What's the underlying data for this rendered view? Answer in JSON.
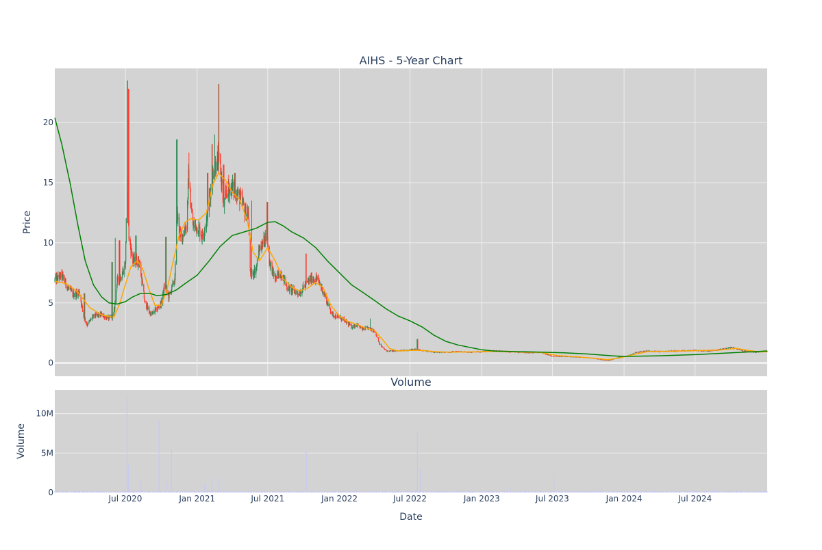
{
  "chart_data": [
    {
      "type": "candlestick",
      "title": "AIHS - 5-Year Chart",
      "xlabel": "",
      "ylabel": "Price",
      "ylim": [
        -1.1,
        24.5
      ],
      "y_ticks": [
        {
          "value": 0,
          "label": "0"
        },
        {
          "value": 5,
          "label": "5"
        },
        {
          "value": 10,
          "label": "10"
        },
        {
          "value": 15,
          "label": "15"
        },
        {
          "value": 20,
          "label": "20"
        }
      ],
      "xlim": [
        "2020-01-02",
        "2025-01-02"
      ],
      "grid": true,
      "colors": {
        "background": "#d3d3d3",
        "grid": "#eeeeee",
        "increasing": "#2e8b57",
        "decreasing": "#ff3c2e",
        "ma_short": "#ffa500",
        "ma_long": "#008000",
        "text": "#2a3f5f"
      },
      "price_path": [
        [
          "2020-01-02",
          6.9
        ],
        [
          "2020-01-20",
          7.3
        ],
        [
          "2020-02-05",
          6.2
        ],
        [
          "2020-02-20",
          5.7
        ],
        [
          "2020-03-05",
          5.9
        ],
        [
          "2020-03-16",
          3.9
        ],
        [
          "2020-03-25",
          3.2
        ],
        [
          "2020-04-10",
          3.9
        ],
        [
          "2020-05-01",
          4.0
        ],
        [
          "2020-05-20",
          3.7
        ],
        [
          "2020-06-01",
          4.0
        ],
        [
          "2020-06-10",
          6.8
        ],
        [
          "2020-06-20",
          7.2
        ],
        [
          "2020-07-01",
          8.2
        ],
        [
          "2020-07-05",
          16.0
        ],
        [
          "2020-07-10",
          10.5
        ],
        [
          "2020-07-20",
          8.5
        ],
        [
          "2020-08-05",
          8.5
        ],
        [
          "2020-08-20",
          5.0
        ],
        [
          "2020-09-05",
          4.0
        ],
        [
          "2020-09-20",
          4.5
        ],
        [
          "2020-10-01",
          5.0
        ],
        [
          "2020-10-10",
          6.5
        ],
        [
          "2020-10-20",
          5.5
        ],
        [
          "2020-11-05",
          7.0
        ],
        [
          "2020-11-10",
          12.5
        ],
        [
          "2020-11-20",
          10.3
        ],
        [
          "2020-12-05",
          11.5
        ],
        [
          "2020-12-10",
          15.5
        ],
        [
          "2020-12-20",
          11.5
        ],
        [
          "2021-01-05",
          11.2
        ],
        [
          "2021-01-15",
          10.5
        ],
        [
          "2021-01-25",
          12.0
        ],
        [
          "2021-02-05",
          14.5
        ],
        [
          "2021-02-12",
          16.0
        ],
        [
          "2021-02-22",
          17.0
        ],
        [
          "2021-03-01",
          16.5
        ],
        [
          "2021-03-10",
          13.0
        ],
        [
          "2021-03-20",
          14.5
        ],
        [
          "2021-04-05",
          14.5
        ],
        [
          "2021-04-15",
          14.0
        ],
        [
          "2021-04-25",
          13.5
        ],
        [
          "2021-05-05",
          12.5
        ],
        [
          "2021-05-12",
          12.5
        ],
        [
          "2021-05-18",
          7.2
        ],
        [
          "2021-06-01",
          7.8
        ],
        [
          "2021-06-10",
          9.5
        ],
        [
          "2021-06-20",
          10.0
        ],
        [
          "2021-06-28",
          11.0
        ],
        [
          "2021-07-05",
          8.5
        ],
        [
          "2021-07-20",
          7.0
        ],
        [
          "2021-08-05",
          7.5
        ],
        [
          "2021-08-20",
          6.3
        ],
        [
          "2021-09-05",
          6.0
        ],
        [
          "2021-09-20",
          5.8
        ],
        [
          "2021-10-05",
          6.5
        ],
        [
          "2021-10-20",
          7.0
        ],
        [
          "2021-11-05",
          7.0
        ],
        [
          "2021-11-20",
          6.0
        ],
        [
          "2021-12-01",
          5.0
        ],
        [
          "2021-12-15",
          4.0
        ],
        [
          "2022-01-01",
          3.8
        ],
        [
          "2022-01-15",
          3.5
        ],
        [
          "2022-02-01",
          3.0
        ],
        [
          "2022-02-15",
          3.2
        ],
        [
          "2022-03-01",
          2.8
        ],
        [
          "2022-03-15",
          2.9
        ],
        [
          "2022-04-01",
          2.7
        ],
        [
          "2022-04-15",
          1.5
        ],
        [
          "2022-05-01",
          1.0
        ],
        [
          "2022-06-01",
          1.0
        ],
        [
          "2022-07-01",
          1.1
        ],
        [
          "2022-07-20",
          1.15
        ],
        [
          "2022-08-01",
          1.05
        ],
        [
          "2022-09-01",
          0.9
        ],
        [
          "2022-10-01",
          0.9
        ],
        [
          "2022-11-01",
          0.95
        ],
        [
          "2022-12-01",
          0.9
        ],
        [
          "2023-01-01",
          0.95
        ],
        [
          "2023-02-01",
          1.0
        ],
        [
          "2023-03-01",
          0.95
        ],
        [
          "2023-04-01",
          0.9
        ],
        [
          "2023-05-01",
          0.85
        ],
        [
          "2023-06-01",
          0.9
        ],
        [
          "2023-07-01",
          0.55
        ],
        [
          "2023-08-01",
          0.55
        ],
        [
          "2023-09-01",
          0.5
        ],
        [
          "2023-10-01",
          0.45
        ],
        [
          "2023-11-01",
          0.3
        ],
        [
          "2023-11-20",
          0.2
        ],
        [
          "2023-12-01",
          0.3
        ],
        [
          "2023-12-20",
          0.5
        ],
        [
          "2024-01-10",
          0.6
        ],
        [
          "2024-02-01",
          0.9
        ],
        [
          "2024-03-01",
          1.0
        ],
        [
          "2024-04-01",
          0.95
        ],
        [
          "2024-05-01",
          1.0
        ],
        [
          "2024-06-01",
          1.0
        ],
        [
          "2024-07-01",
          1.05
        ],
        [
          "2024-08-01",
          1.0
        ],
        [
          "2024-09-01",
          1.1
        ],
        [
          "2024-10-01",
          1.3
        ],
        [
          "2024-10-20",
          1.15
        ],
        [
          "2024-11-01",
          1.0
        ],
        [
          "2024-12-01",
          0.9
        ],
        [
          "2025-01-02",
          1.0
        ]
      ],
      "spikes": [
        [
          "2020-03-18",
          5.8
        ],
        [
          "2020-05-28",
          8.4
        ],
        [
          "2020-06-06",
          10.4
        ],
        [
          "2020-06-16",
          10.2
        ],
        [
          "2020-07-06",
          23.5
        ],
        [
          "2020-07-09",
          22.8
        ],
        [
          "2020-07-28",
          10.6
        ],
        [
          "2020-10-13",
          10.5
        ],
        [
          "2020-11-10",
          18.6
        ],
        [
          "2020-12-12",
          17.5
        ],
        [
          "2021-01-28",
          15.8
        ],
        [
          "2021-02-08",
          18.2
        ],
        [
          "2021-02-14",
          19.0
        ],
        [
          "2021-02-26",
          23.2
        ],
        [
          "2021-03-10",
          16.5
        ],
        [
          "2021-04-08",
          15.8
        ],
        [
          "2021-05-22",
          13.5
        ],
        [
          "2021-06-30",
          13.4
        ],
        [
          "2021-10-08",
          9.1
        ],
        [
          "2022-03-20",
          3.7
        ],
        [
          "2022-07-20",
          2.0
        ]
      ],
      "ma_short": [
        [
          "2020-01-02",
          6.8
        ],
        [
          "2020-02-01",
          6.6
        ],
        [
          "2020-03-01",
          5.9
        ],
        [
          "2020-04-01",
          4.6
        ],
        [
          "2020-05-01",
          4.0
        ],
        [
          "2020-06-01",
          3.8
        ],
        [
          "2020-06-15",
          4.8
        ],
        [
          "2020-07-01",
          6.5
        ],
        [
          "2020-07-15",
          8.0
        ],
        [
          "2020-08-01",
          8.5
        ],
        [
          "2020-08-15",
          7.8
        ],
        [
          "2020-09-01",
          6.0
        ],
        [
          "2020-09-15",
          4.8
        ],
        [
          "2020-10-01",
          4.8
        ],
        [
          "2020-10-15",
          6.0
        ],
        [
          "2020-11-01",
          8.5
        ],
        [
          "2020-11-15",
          10.5
        ],
        [
          "2020-12-01",
          11.7
        ],
        [
          "2020-12-15",
          12.0
        ],
        [
          "2021-01-05",
          11.9
        ],
        [
          "2021-01-25",
          12.5
        ],
        [
          "2021-02-10",
          14.8
        ],
        [
          "2021-02-25",
          15.8
        ],
        [
          "2021-03-15",
          15.2
        ],
        [
          "2021-04-01",
          14.2
        ],
        [
          "2021-04-20",
          13.6
        ],
        [
          "2021-05-10",
          11.8
        ],
        [
          "2021-05-25",
          9.2
        ],
        [
          "2021-06-10",
          8.5
        ],
        [
          "2021-07-01",
          9.6
        ],
        [
          "2021-07-20",
          8.5
        ],
        [
          "2021-08-10",
          7.0
        ],
        [
          "2021-09-01",
          6.3
        ],
        [
          "2021-09-20",
          6.0
        ],
        [
          "2021-10-10",
          6.2
        ],
        [
          "2021-11-01",
          6.7
        ],
        [
          "2021-11-20",
          6.3
        ],
        [
          "2021-12-10",
          4.8
        ],
        [
          "2022-01-01",
          3.9
        ],
        [
          "2022-01-20",
          3.5
        ],
        [
          "2022-02-15",
          3.2
        ],
        [
          "2022-03-10",
          2.9
        ],
        [
          "2022-04-01",
          2.7
        ],
        [
          "2022-04-20",
          2.0
        ],
        [
          "2022-05-10",
          1.2
        ],
        [
          "2022-06-01",
          1.0
        ],
        [
          "2022-07-01",
          1.05
        ],
        [
          "2022-08-01",
          1.05
        ],
        [
          "2022-09-01",
          0.95
        ],
        [
          "2022-10-01",
          0.9
        ],
        [
          "2022-12-01",
          0.92
        ],
        [
          "2023-02-01",
          0.97
        ],
        [
          "2023-04-01",
          0.92
        ],
        [
          "2023-06-01",
          0.88
        ],
        [
          "2023-07-15",
          0.62
        ],
        [
          "2023-09-01",
          0.52
        ],
        [
          "2023-10-15",
          0.4
        ],
        [
          "2023-11-20",
          0.28
        ],
        [
          "2023-12-20",
          0.42
        ],
        [
          "2024-02-01",
          0.75
        ],
        [
          "2024-03-01",
          0.95
        ],
        [
          "2024-05-01",
          0.98
        ],
        [
          "2024-07-01",
          1.02
        ],
        [
          "2024-09-01",
          1.08
        ],
        [
          "2024-10-15",
          1.22
        ],
        [
          "2024-11-15",
          1.05
        ],
        [
          "2024-12-15",
          0.92
        ],
        [
          "2025-01-02",
          0.95
        ]
      ],
      "ma_long": [
        [
          "2020-01-02",
          20.4
        ],
        [
          "2020-01-20",
          18.2
        ],
        [
          "2020-02-10",
          15.0
        ],
        [
          "2020-03-01",
          11.5
        ],
        [
          "2020-03-20",
          8.5
        ],
        [
          "2020-04-10",
          6.5
        ],
        [
          "2020-05-01",
          5.5
        ],
        [
          "2020-05-20",
          5.0
        ],
        [
          "2020-06-10",
          4.9
        ],
        [
          "2020-07-01",
          5.1
        ],
        [
          "2020-07-20",
          5.5
        ],
        [
          "2020-08-10",
          5.8
        ],
        [
          "2020-09-01",
          5.8
        ],
        [
          "2020-09-20",
          5.6
        ],
        [
          "2020-10-15",
          5.7
        ],
        [
          "2020-11-10",
          6.1
        ],
        [
          "2020-12-01",
          6.6
        ],
        [
          "2021-01-01",
          7.3
        ],
        [
          "2021-02-01",
          8.5
        ],
        [
          "2021-03-01",
          9.7
        ],
        [
          "2021-04-01",
          10.6
        ],
        [
          "2021-05-01",
          10.9
        ],
        [
          "2021-06-01",
          11.2
        ],
        [
          "2021-07-01",
          11.7
        ],
        [
          "2021-07-20",
          11.75
        ],
        [
          "2021-08-10",
          11.4
        ],
        [
          "2021-09-01",
          10.9
        ],
        [
          "2021-10-01",
          10.4
        ],
        [
          "2021-11-01",
          9.6
        ],
        [
          "2021-12-01",
          8.5
        ],
        [
          "2022-01-01",
          7.5
        ],
        [
          "2022-02-01",
          6.5
        ],
        [
          "2022-03-01",
          5.9
        ],
        [
          "2022-04-01",
          5.2
        ],
        [
          "2022-05-01",
          4.5
        ],
        [
          "2022-06-01",
          3.9
        ],
        [
          "2022-07-01",
          3.5
        ],
        [
          "2022-08-01",
          3.0
        ],
        [
          "2022-09-01",
          2.3
        ],
        [
          "2022-10-01",
          1.8
        ],
        [
          "2022-11-01",
          1.5
        ],
        [
          "2022-12-01",
          1.3
        ],
        [
          "2023-01-01",
          1.1
        ],
        [
          "2023-02-01",
          1.0
        ],
        [
          "2023-04-01",
          0.95
        ],
        [
          "2023-06-01",
          0.9
        ],
        [
          "2023-08-01",
          0.85
        ],
        [
          "2023-10-01",
          0.75
        ],
        [
          "2023-12-01",
          0.6
        ],
        [
          "2024-01-01",
          0.55
        ],
        [
          "2024-04-01",
          0.6
        ],
        [
          "2024-07-01",
          0.7
        ],
        [
          "2024-10-01",
          0.85
        ],
        [
          "2025-01-02",
          1.0
        ]
      ]
    },
    {
      "type": "bar",
      "title": "Volume",
      "xlabel": "Date",
      "ylabel": "Volume",
      "ylim": [
        0,
        13000000
      ],
      "y_ticks": [
        {
          "value": 0,
          "label": "0"
        },
        {
          "value": 5000000,
          "label": "5M"
        },
        {
          "value": 10000000,
          "label": "10M"
        }
      ],
      "x_ticks": [
        {
          "value": "2020-07-01",
          "label": "Jul 2020"
        },
        {
          "value": "2021-01-01",
          "label": "Jan 2021"
        },
        {
          "value": "2021-07-01",
          "label": "Jul 2021"
        },
        {
          "value": "2022-01-01",
          "label": "Jan 2022"
        },
        {
          "value": "2022-07-01",
          "label": "Jul 2022"
        },
        {
          "value": "2023-01-01",
          "label": "Jan 2023"
        },
        {
          "value": "2023-07-01",
          "label": "Jul 2023"
        },
        {
          "value": "2024-01-01",
          "label": "Jan 2024"
        },
        {
          "value": "2024-07-01",
          "label": "Jul 2024"
        }
      ],
      "grid": true,
      "bar_color": "#c7c9f0",
      "spikes": [
        [
          "2020-07-06",
          12300000
        ],
        [
          "2020-07-09",
          3500000
        ],
        [
          "2020-08-10",
          1500000
        ],
        [
          "2020-09-25",
          9000000
        ],
        [
          "2020-10-10",
          1200000
        ],
        [
          "2020-10-15",
          1300000
        ],
        [
          "2020-10-27",
          5400000
        ],
        [
          "2020-12-12",
          1200000
        ],
        [
          "2021-01-20",
          1100000
        ],
        [
          "2021-02-08",
          1800000
        ],
        [
          "2021-02-14",
          2000000
        ],
        [
          "2021-02-26",
          1800000
        ],
        [
          "2021-10-08",
          5300000
        ],
        [
          "2022-05-01",
          800000
        ],
        [
          "2022-05-28",
          2000000
        ],
        [
          "2022-07-20",
          7700000
        ],
        [
          "2022-07-28",
          3000000
        ],
        [
          "2023-01-01",
          1800000
        ],
        [
          "2023-03-15",
          700000
        ],
        [
          "2023-07-05",
          1900000
        ],
        [
          "2024-08-20",
          400000
        ]
      ]
    }
  ]
}
